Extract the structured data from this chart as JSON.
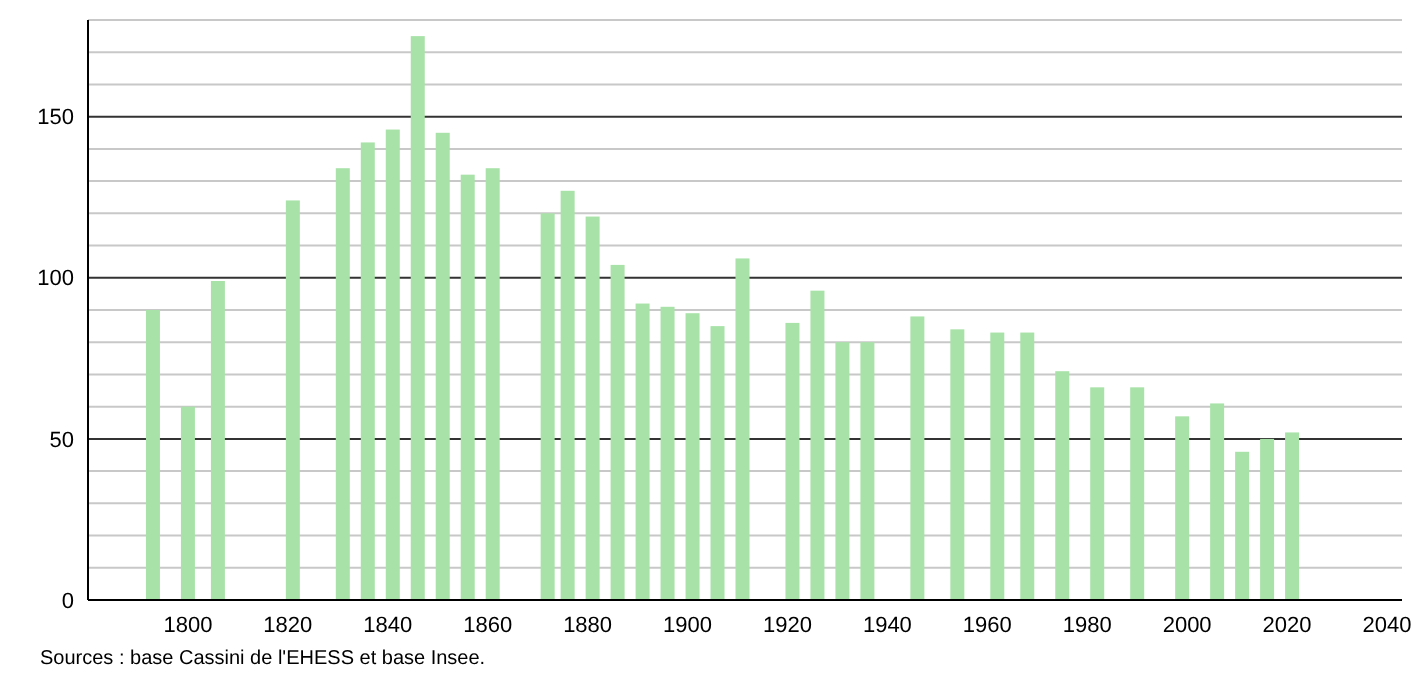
{
  "chart_data": {
    "type": "bar",
    "x": [
      1793,
      1800,
      1806,
      1821,
      1831,
      1836,
      1841,
      1846,
      1851,
      1856,
      1861,
      1872,
      1876,
      1881,
      1886,
      1891,
      1896,
      1901,
      1906,
      1911,
      1921,
      1926,
      1931,
      1936,
      1946,
      1954,
      1962,
      1968,
      1975,
      1982,
      1990,
      1999,
      2006,
      2011,
      2016,
      2021
    ],
    "values": [
      90,
      60,
      99,
      124,
      134,
      142,
      146,
      175,
      145,
      132,
      134,
      120,
      127,
      119,
      104,
      92,
      91,
      89,
      85,
      106,
      86,
      96,
      80,
      80,
      88,
      84,
      83,
      83,
      71,
      66,
      66,
      57,
      61,
      46,
      50,
      52
    ],
    "color": "#a8e2a8",
    "xlim": [
      1780,
      2043
    ],
    "xticks": [
      1800,
      1820,
      1840,
      1860,
      1880,
      1900,
      1920,
      1940,
      1960,
      1980,
      2000,
      2020,
      2040
    ],
    "ylim": [
      0,
      180
    ],
    "yticks": [
      0,
      {
        "value": 10,
        "label": null
      },
      {
        "value": 20,
        "label": null
      },
      {
        "value": 30,
        "label": null
      },
      {
        "value": 40,
        "label": null
      },
      50,
      {
        "value": 60,
        "label": null
      },
      {
        "value": 70,
        "label": null
      },
      {
        "value": 80,
        "label": null
      },
      {
        "value": 90,
        "label": null
      },
      100,
      {
        "value": 110,
        "label": null
      },
      {
        "value": 120,
        "label": null
      },
      {
        "value": 130,
        "label": null
      },
      {
        "value": 140,
        "label": null
      },
      150,
      {
        "value": 160,
        "label": null
      },
      {
        "value": 170,
        "label": null
      },
      {
        "value": 180,
        "label": null
      }
    ],
    "grid": "y",
    "annotations": [
      "Sources : base Cassini de l'EHESS et base Insee."
    ]
  }
}
